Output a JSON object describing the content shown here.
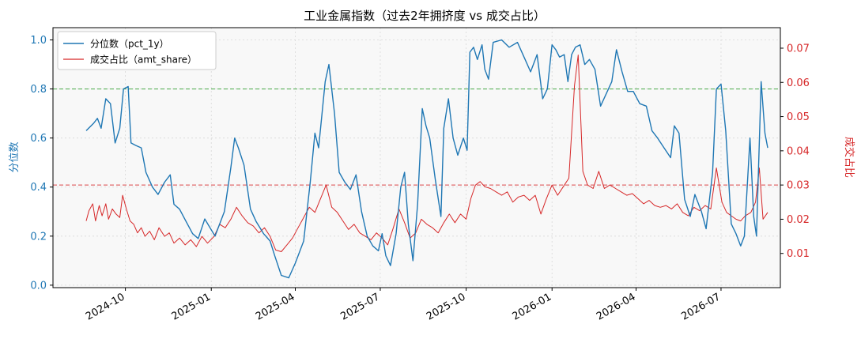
{
  "chart_data": {
    "type": "line",
    "title": "工业金属指数（过去2年拥挤度 vs 成交占比）",
    "ylabel_left": "分位数",
    "ylabel_right": "成交占比",
    "ylim_left": [
      -0.01,
      1.05
    ],
    "ylim_right": [
      0.0,
      0.076
    ],
    "yticks_left": [
      "0.0",
      "0.2",
      "0.4",
      "0.6",
      "0.8",
      "1.0"
    ],
    "yticks_right": [
      "0.01",
      "0.02",
      "0.03",
      "0.04",
      "0.05",
      "0.06",
      "0.07"
    ],
    "xticks": [
      "2024-10",
      "2025-01",
      "2025-04",
      "2025-07",
      "2025-10",
      "2026-01",
      "2026-04",
      "2026-07"
    ],
    "x_start": "2024-08-20",
    "x_end": "2026-08-20",
    "grid": true,
    "legend_position": "top-left",
    "colors": {
      "pct": "#1f77b4",
      "amt": "#d62728",
      "hline_left": "#2ca02c",
      "hline_right": "#d62728"
    },
    "hlines": [
      {
        "axis": "left",
        "value": 0.8,
        "color": "#2ca02c"
      },
      {
        "axis": "right",
        "value": 0.03,
        "color": "#d62728"
      }
    ],
    "series": [
      {
        "name": "分位数（pct_1y）",
        "axis": "left",
        "color": "#1f77b4",
        "points": [
          [
            "2024-08-20",
            0.63
          ],
          [
            "2024-08-28",
            0.66
          ],
          [
            "2024-09-01",
            0.68
          ],
          [
            "2024-09-05",
            0.64
          ],
          [
            "2024-09-10",
            0.76
          ],
          [
            "2024-09-15",
            0.74
          ],
          [
            "2024-09-20",
            0.58
          ],
          [
            "2024-09-25",
            0.64
          ],
          [
            "2024-09-29",
            0.8
          ],
          [
            "2024-10-04",
            0.81
          ],
          [
            "2024-10-07",
            0.58
          ],
          [
            "2024-10-12",
            0.57
          ],
          [
            "2024-10-18",
            0.56
          ],
          [
            "2024-10-23",
            0.46
          ],
          [
            "2024-10-30",
            0.4
          ],
          [
            "2024-11-05",
            0.37
          ],
          [
            "2024-11-12",
            0.42
          ],
          [
            "2024-11-18",
            0.45
          ],
          [
            "2024-11-22",
            0.33
          ],
          [
            "2024-11-28",
            0.31
          ],
          [
            "2024-12-05",
            0.26
          ],
          [
            "2024-12-12",
            0.21
          ],
          [
            "2024-12-18",
            0.19
          ],
          [
            "2024-12-25",
            0.27
          ],
          [
            "2025-01-05",
            0.2
          ],
          [
            "2025-01-15",
            0.3
          ],
          [
            "2025-01-22",
            0.48
          ],
          [
            "2025-01-26",
            0.6
          ],
          [
            "2025-01-30",
            0.56
          ],
          [
            "2025-02-05",
            0.49
          ],
          [
            "2025-02-12",
            0.31
          ],
          [
            "2025-02-18",
            0.26
          ],
          [
            "2025-02-26",
            0.21
          ],
          [
            "2025-03-05",
            0.18
          ],
          [
            "2025-03-10",
            0.12
          ],
          [
            "2025-03-17",
            0.04
          ],
          [
            "2025-03-25",
            0.03
          ],
          [
            "2025-04-01",
            0.09
          ],
          [
            "2025-04-10",
            0.18
          ],
          [
            "2025-04-17",
            0.42
          ],
          [
            "2025-04-22",
            0.62
          ],
          [
            "2025-04-26",
            0.56
          ],
          [
            "2025-05-03",
            0.83
          ],
          [
            "2025-05-07",
            0.9
          ],
          [
            "2025-05-13",
            0.7
          ],
          [
            "2025-05-18",
            0.46
          ],
          [
            "2025-05-24",
            0.42
          ],
          [
            "2025-05-30",
            0.39
          ],
          [
            "2025-06-05",
            0.45
          ],
          [
            "2025-06-11",
            0.3
          ],
          [
            "2025-06-17",
            0.2
          ],
          [
            "2025-06-23",
            0.16
          ],
          [
            "2025-06-29",
            0.14
          ],
          [
            "2025-07-03",
            0.21
          ],
          [
            "2025-07-07",
            0.12
          ],
          [
            "2025-07-12",
            0.08
          ],
          [
            "2025-07-18",
            0.21
          ],
          [
            "2025-07-23",
            0.4
          ],
          [
            "2025-07-27",
            0.46
          ],
          [
            "2025-07-31",
            0.25
          ],
          [
            "2025-08-05",
            0.1
          ],
          [
            "2025-08-10",
            0.33
          ],
          [
            "2025-08-15",
            0.72
          ],
          [
            "2025-08-19",
            0.65
          ],
          [
            "2025-08-23",
            0.6
          ],
          [
            "2025-08-29",
            0.43
          ],
          [
            "2025-09-04",
            0.28
          ],
          [
            "2025-09-07",
            0.64
          ],
          [
            "2025-09-12",
            0.76
          ],
          [
            "2025-09-17",
            0.6
          ],
          [
            "2025-09-22",
            0.53
          ],
          [
            "2025-09-28",
            0.6
          ],
          [
            "2025-10-02",
            0.55
          ],
          [
            "2025-10-05",
            0.95
          ],
          [
            "2025-10-09",
            0.97
          ],
          [
            "2025-10-13",
            0.92
          ],
          [
            "2025-10-18",
            0.98
          ],
          [
            "2025-10-21",
            0.88
          ],
          [
            "2025-10-25",
            0.84
          ],
          [
            "2025-10-30",
            0.99
          ],
          [
            "2025-11-08",
            1.0
          ],
          [
            "2025-11-16",
            0.97
          ],
          [
            "2025-11-25",
            0.99
          ],
          [
            "2025-12-02",
            0.93
          ],
          [
            "2025-12-09",
            0.87
          ],
          [
            "2025-12-16",
            0.94
          ],
          [
            "2025-12-22",
            0.76
          ],
          [
            "2025-12-27",
            0.8
          ],
          [
            "2026-01-01",
            0.98
          ],
          [
            "2026-01-05",
            0.96
          ],
          [
            "2026-01-09",
            0.93
          ],
          [
            "2026-01-14",
            0.94
          ],
          [
            "2026-01-18",
            0.83
          ],
          [
            "2026-01-22",
            0.94
          ],
          [
            "2026-01-26",
            0.97
          ],
          [
            "2026-01-31",
            0.98
          ],
          [
            "2026-02-05",
            0.9
          ],
          [
            "2026-02-10",
            0.92
          ],
          [
            "2026-02-16",
            0.88
          ],
          [
            "2026-02-22",
            0.73
          ],
          [
            "2026-02-28",
            0.78
          ],
          [
            "2026-03-06",
            0.83
          ],
          [
            "2026-03-11",
            0.96
          ],
          [
            "2026-03-17",
            0.87
          ],
          [
            "2026-03-23",
            0.79
          ],
          [
            "2026-03-29",
            0.79
          ],
          [
            "2026-04-05",
            0.74
          ],
          [
            "2026-04-12",
            0.73
          ],
          [
            "2026-04-18",
            0.63
          ],
          [
            "2026-04-24",
            0.6
          ],
          [
            "2026-05-01",
            0.56
          ],
          [
            "2026-05-08",
            0.52
          ],
          [
            "2026-05-12",
            0.65
          ],
          [
            "2026-05-17",
            0.62
          ],
          [
            "2026-05-23",
            0.35
          ],
          [
            "2026-05-29",
            0.28
          ],
          [
            "2026-06-03",
            0.37
          ],
          [
            "2026-06-10",
            0.3
          ],
          [
            "2026-06-15",
            0.23
          ],
          [
            "2026-06-22",
            0.46
          ],
          [
            "2026-06-26",
            0.8
          ],
          [
            "2026-07-01",
            0.82
          ],
          [
            "2026-07-06",
            0.63
          ],
          [
            "2026-07-12",
            0.25
          ],
          [
            "2026-07-17",
            0.21
          ],
          [
            "2026-07-22",
            0.16
          ],
          [
            "2026-07-26",
            0.2
          ],
          [
            "2026-08-01",
            0.6
          ],
          [
            "2026-08-05",
            0.28
          ],
          [
            "2026-08-08",
            0.2
          ],
          [
            "2026-08-13",
            0.83
          ],
          [
            "2026-08-17",
            0.62
          ],
          [
            "2026-08-20",
            0.56
          ]
        ]
      },
      {
        "name": "成交占比（amt_share）",
        "axis": "right",
        "color": "#d62728",
        "points": [
          [
            "2024-08-20",
            0.0195
          ],
          [
            "2024-08-23",
            0.0225
          ],
          [
            "2024-08-27",
            0.0245
          ],
          [
            "2024-08-30",
            0.0195
          ],
          [
            "2024-09-03",
            0.024
          ],
          [
            "2024-09-06",
            0.021
          ],
          [
            "2024-09-10",
            0.0245
          ],
          [
            "2024-09-13",
            0.02
          ],
          [
            "2024-09-17",
            0.023
          ],
          [
            "2024-09-21",
            0.0215
          ],
          [
            "2024-09-25",
            0.0205
          ],
          [
            "2024-09-28",
            0.027
          ],
          [
            "2024-10-02",
            0.023
          ],
          [
            "2024-10-06",
            0.0195
          ],
          [
            "2024-10-10",
            0.0185
          ],
          [
            "2024-10-14",
            0.016
          ],
          [
            "2024-10-18",
            0.0175
          ],
          [
            "2024-10-22",
            0.015
          ],
          [
            "2024-10-27",
            0.0165
          ],
          [
            "2024-11-01",
            0.014
          ],
          [
            "2024-11-06",
            0.0175
          ],
          [
            "2024-11-12",
            0.015
          ],
          [
            "2024-11-17",
            0.016
          ],
          [
            "2024-11-22",
            0.013
          ],
          [
            "2024-11-28",
            0.0145
          ],
          [
            "2024-12-04",
            0.0125
          ],
          [
            "2024-12-10",
            0.014
          ],
          [
            "2024-12-16",
            0.012
          ],
          [
            "2024-12-22",
            0.015
          ],
          [
            "2024-12-28",
            0.013
          ],
          [
            "2025-01-04",
            0.015
          ],
          [
            "2025-01-10",
            0.0185
          ],
          [
            "2025-01-16",
            0.0175
          ],
          [
            "2025-01-22",
            0.02
          ],
          [
            "2025-01-28",
            0.0235
          ],
          [
            "2025-02-03",
            0.021
          ],
          [
            "2025-02-09",
            0.019
          ],
          [
            "2025-02-15",
            0.018
          ],
          [
            "2025-02-21",
            0.016
          ],
          [
            "2025-02-27",
            0.0175
          ],
          [
            "2025-03-05",
            0.015
          ],
          [
            "2025-03-11",
            0.011
          ],
          [
            "2025-03-17",
            0.0105
          ],
          [
            "2025-03-23",
            0.0125
          ],
          [
            "2025-03-29",
            0.0145
          ],
          [
            "2025-04-04",
            0.0175
          ],
          [
            "2025-04-10",
            0.0205
          ],
          [
            "2025-04-16",
            0.0235
          ],
          [
            "2025-04-22",
            0.022
          ],
          [
            "2025-04-28",
            0.026
          ],
          [
            "2025-05-04",
            0.03
          ],
          [
            "2025-05-10",
            0.0235
          ],
          [
            "2025-05-16",
            0.022
          ],
          [
            "2025-05-22",
            0.0195
          ],
          [
            "2025-05-28",
            0.017
          ],
          [
            "2025-06-03",
            0.0185
          ],
          [
            "2025-06-09",
            0.016
          ],
          [
            "2025-06-15",
            0.015
          ],
          [
            "2025-06-21",
            0.014
          ],
          [
            "2025-06-27",
            0.016
          ],
          [
            "2025-07-03",
            0.0145
          ],
          [
            "2025-07-09",
            0.0125
          ],
          [
            "2025-07-15",
            0.0175
          ],
          [
            "2025-07-21",
            0.023
          ],
          [
            "2025-07-27",
            0.019
          ],
          [
            "2025-08-02",
            0.0145
          ],
          [
            "2025-08-08",
            0.016
          ],
          [
            "2025-08-14",
            0.02
          ],
          [
            "2025-08-20",
            0.0185
          ],
          [
            "2025-08-26",
            0.0175
          ],
          [
            "2025-09-01",
            0.016
          ],
          [
            "2025-09-07",
            0.019
          ],
          [
            "2025-09-13",
            0.0215
          ],
          [
            "2025-09-19",
            0.019
          ],
          [
            "2025-09-25",
            0.0215
          ],
          [
            "2025-10-01",
            0.02
          ],
          [
            "2025-10-06",
            0.026
          ],
          [
            "2025-10-11",
            0.03
          ],
          [
            "2025-10-16",
            0.031
          ],
          [
            "2025-10-21",
            0.0295
          ],
          [
            "2025-10-27",
            0.029
          ],
          [
            "2025-11-02",
            0.028
          ],
          [
            "2025-11-08",
            0.027
          ],
          [
            "2025-11-14",
            0.028
          ],
          [
            "2025-11-20",
            0.025
          ],
          [
            "2025-11-26",
            0.0265
          ],
          [
            "2025-12-02",
            0.027
          ],
          [
            "2025-12-08",
            0.0255
          ],
          [
            "2025-12-14",
            0.027
          ],
          [
            "2025-12-20",
            0.0215
          ],
          [
            "2025-12-26",
            0.026
          ],
          [
            "2026-01-01",
            0.03
          ],
          [
            "2026-01-07",
            0.027
          ],
          [
            "2026-01-13",
            0.0295
          ],
          [
            "2026-01-19",
            0.032
          ],
          [
            "2026-01-25",
            0.059
          ],
          [
            "2026-01-29",
            0.068
          ],
          [
            "2026-02-03",
            0.034
          ],
          [
            "2026-02-08",
            0.03
          ],
          [
            "2026-02-14",
            0.029
          ],
          [
            "2026-02-20",
            0.034
          ],
          [
            "2026-02-26",
            0.029
          ],
          [
            "2026-03-04",
            0.03
          ],
          [
            "2026-03-10",
            0.029
          ],
          [
            "2026-03-16",
            0.028
          ],
          [
            "2026-03-22",
            0.027
          ],
          [
            "2026-03-28",
            0.0275
          ],
          [
            "2026-04-03",
            0.026
          ],
          [
            "2026-04-09",
            0.0245
          ],
          [
            "2026-04-15",
            0.0255
          ],
          [
            "2026-04-21",
            0.024
          ],
          [
            "2026-04-27",
            0.0235
          ],
          [
            "2026-05-03",
            0.024
          ],
          [
            "2026-05-09",
            0.023
          ],
          [
            "2026-05-15",
            0.0245
          ],
          [
            "2026-05-21",
            0.022
          ],
          [
            "2026-05-27",
            0.021
          ],
          [
            "2026-06-02",
            0.0235
          ],
          [
            "2026-06-08",
            0.0225
          ],
          [
            "2026-06-14",
            0.024
          ],
          [
            "2026-06-20",
            0.023
          ],
          [
            "2026-06-26",
            0.035
          ],
          [
            "2026-07-02",
            0.025
          ],
          [
            "2026-07-07",
            0.022
          ],
          [
            "2026-07-12",
            0.021
          ],
          [
            "2026-07-17",
            0.02
          ],
          [
            "2026-07-22",
            0.0195
          ],
          [
            "2026-07-27",
            0.021
          ],
          [
            "2026-08-02",
            0.022
          ],
          [
            "2026-08-07",
            0.025
          ],
          [
            "2026-08-11",
            0.035
          ],
          [
            "2026-08-15",
            0.02
          ],
          [
            "2026-08-20",
            0.022
          ]
        ]
      }
    ]
  }
}
